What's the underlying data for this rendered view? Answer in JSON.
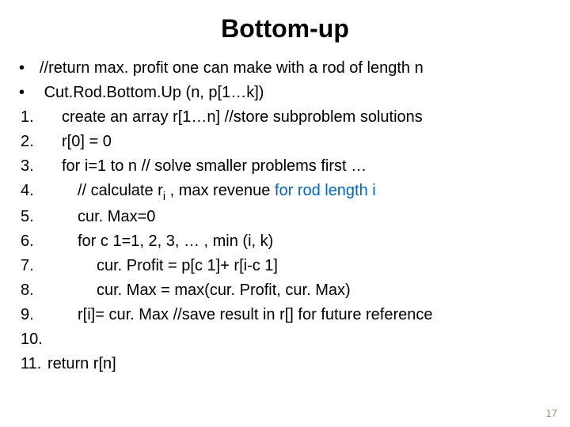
{
  "title": "Bottom-up",
  "b1": "//return max. profit one can make with a rod of length n",
  "b2": "Cut.Rod.Bottom.Up (n, p[1…k])",
  "l1": "create an array r[1…n] //store subproblem solutions",
  "l2": "r[0] = 0",
  "l3": "for i=1 to n  // solve smaller problems first …",
  "l4a": "// calculate r",
  "l4sub": "i",
  "l4b": " , max revenue",
  "l4c": " for rod length i",
  "l5": "cur. Max=0",
  "l6": "for  c 1=1, 2, 3, … ,  min (i, k)",
  "l7": "cur. Profit = p[c 1]+ r[i-c 1]",
  "l8": "cur. Max = max(cur. Profit, cur. Max)",
  "l9": "r[i]= cur. Max   //save result in r[] for future reference",
  "l11": "return r[n]",
  "n1": "1.",
  "n2": "2.",
  "n3": "3.",
  "n4": "4.",
  "n5": "5.",
  "n6": "6.",
  "n7": "7.",
  "n8": "8.",
  "n9": "9.",
  "n10": "10.",
  "n11": "11.",
  "dot": "•",
  "page": "17",
  "colors": {
    "link": "#0066cc",
    "text": "#000000",
    "pagenum": "#a88c66",
    "bg": "#ffffff"
  },
  "fontsize": {
    "title": 32,
    "body": 20,
    "pagenum": 13
  }
}
